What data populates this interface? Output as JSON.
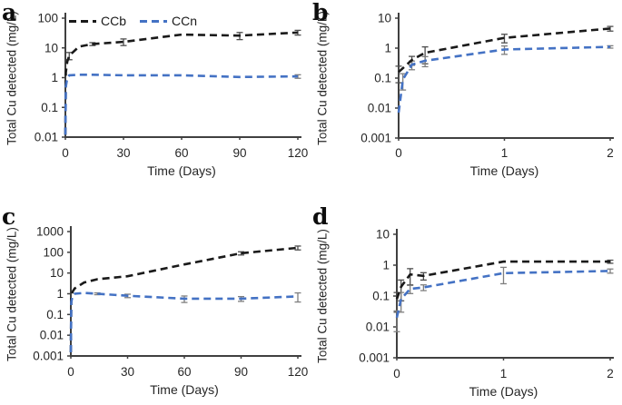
{
  "figure_title": "",
  "accent_colors": {
    "ccb": "#1a1a1a",
    "ccn": "#4472c4",
    "axis": "#404040"
  },
  "chart_data": [
    {
      "panel_label": "a",
      "type": "line",
      "xlabel": "Time (Days)",
      "ylabel": "Total Cu detected (mg/L)",
      "y_scale": "log",
      "xlim": [
        0,
        120
      ],
      "ylim": [
        0.01,
        100
      ],
      "x_ticks": [
        0,
        30,
        60,
        90,
        120
      ],
      "y_ticks": [
        "100",
        "10",
        "1",
        "0.1",
        "0.01"
      ],
      "grid": false,
      "legend": true,
      "legend_position": "top-inside",
      "series": [
        {
          "name": "CCb",
          "color": "#1a1a1a",
          "error_color": "#4d4d4d",
          "x": [
            0,
            0.25,
            1,
            2,
            7,
            14,
            30,
            60,
            90,
            120
          ],
          "y": [
            0.012,
            1.5,
            3.5,
            5.5,
            11,
            13.5,
            16,
            28,
            26,
            33
          ],
          "yerr": [
            0,
            0,
            0,
            1.5,
            0,
            1.5,
            4,
            0,
            7,
            6
          ]
        },
        {
          "name": "CCn",
          "color": "#4472c4",
          "error_color": "#7f7f7f",
          "x": [
            0,
            0.25,
            1,
            2,
            7,
            14,
            30,
            60,
            90,
            120
          ],
          "y": [
            0.012,
            0.5,
            1.0,
            1.2,
            1.25,
            1.25,
            1.2,
            1.2,
            1.05,
            1.1
          ],
          "yerr": [
            0,
            0,
            0,
            0,
            0,
            0,
            0,
            0,
            0,
            0.15
          ]
        }
      ]
    },
    {
      "panel_label": "b",
      "type": "line",
      "xlabel": "Time (Days)",
      "ylabel": "Total Cu detected (mg/L)",
      "y_scale": "log",
      "xlim": [
        0,
        2
      ],
      "ylim": [
        0.001,
        10
      ],
      "x_ticks": [
        0,
        1,
        2
      ],
      "y_ticks": [
        "10",
        "1",
        "0.1",
        "0.01",
        "0.001"
      ],
      "grid": false,
      "legend": false,
      "series": [
        {
          "name": "CCb",
          "color": "#1a1a1a",
          "error_color": "#4d4d4d",
          "x": [
            0,
            0.125,
            0.25,
            1,
            2
          ],
          "y": [
            0.16,
            0.4,
            0.7,
            2.2,
            4.5
          ],
          "yerr": [
            0.09,
            0.13,
            0.4,
            0.7,
            0.8
          ]
        },
        {
          "name": "CCn",
          "color": "#4472c4",
          "error_color": "#7f7f7f",
          "x": [
            0,
            0.04,
            0.125,
            0.25,
            1,
            2
          ],
          "y": [
            0.007,
            0.09,
            0.28,
            0.38,
            0.9,
            1.1
          ],
          "yerr": [
            0,
            0.05,
            0.09,
            0.14,
            0.28,
            0.1
          ]
        }
      ]
    },
    {
      "panel_label": "c",
      "type": "line",
      "xlabel": "Time (Days)",
      "ylabel": "Total Cu detected (mg/L)",
      "y_scale": "log",
      "xlim": [
        0,
        120
      ],
      "ylim": [
        0.001,
        1000
      ],
      "x_ticks": [
        0,
        30,
        60,
        90,
        120
      ],
      "y_ticks": [
        "1000",
        "100",
        "10",
        "1",
        "0.1",
        "0.01",
        "0.001"
      ],
      "grid": false,
      "legend": false,
      "series": [
        {
          "name": "CCb",
          "color": "#1a1a1a",
          "error_color": "#4d4d4d",
          "x": [
            0,
            0.25,
            1,
            2,
            7,
            14,
            30,
            60,
            90,
            120
          ],
          "y": [
            0.0015,
            0.8,
            1.3,
            1.8,
            3.5,
            5,
            7,
            26,
            90,
            165
          ],
          "yerr": [
            0,
            0,
            0,
            0,
            0,
            0,
            0,
            0,
            16,
            35
          ]
        },
        {
          "name": "CCn",
          "color": "#4472c4",
          "error_color": "#7f7f7f",
          "x": [
            0,
            0.25,
            1,
            2,
            7,
            14,
            30,
            60,
            90,
            120
          ],
          "y": [
            0.0015,
            0.4,
            0.85,
            1.0,
            1.1,
            1.0,
            0.8,
            0.58,
            0.58,
            0.75
          ],
          "yerr": [
            0,
            0,
            0,
            0,
            0,
            0.1,
            0.15,
            0.2,
            0.15,
            0.35
          ]
        }
      ]
    },
    {
      "panel_label": "d",
      "type": "line",
      "xlabel": "Time (Days)",
      "ylabel": "Total Cu detected (mg/L)",
      "y_scale": "log",
      "xlim": [
        0,
        2
      ],
      "ylim": [
        0.001,
        10
      ],
      "x_ticks": [
        0,
        1,
        2
      ],
      "y_ticks": [
        "10",
        "1",
        "0.1",
        "0.01",
        "0.001"
      ],
      "grid": false,
      "legend": false,
      "series": [
        {
          "name": "CCb",
          "color": "#1a1a1a",
          "error_color": "#4d4d4d",
          "x": [
            0,
            0.04,
            0.125,
            0.25,
            1,
            2
          ],
          "y": [
            0.08,
            0.2,
            0.5,
            0.45,
            1.3,
            1.3
          ],
          "yerr": [
            0.05,
            0.13,
            0.27,
            0.12,
            0,
            0.15
          ]
        },
        {
          "name": "CCn",
          "color": "#4472c4",
          "error_color": "#7f7f7f",
          "x": [
            0,
            0.04,
            0.125,
            0.25,
            1,
            2
          ],
          "y": [
            0.02,
            0.08,
            0.17,
            0.19,
            0.55,
            0.65
          ],
          "yerr": [
            0.013,
            0.05,
            0.05,
            0.04,
            0.3,
            0.1
          ]
        }
      ]
    }
  ]
}
